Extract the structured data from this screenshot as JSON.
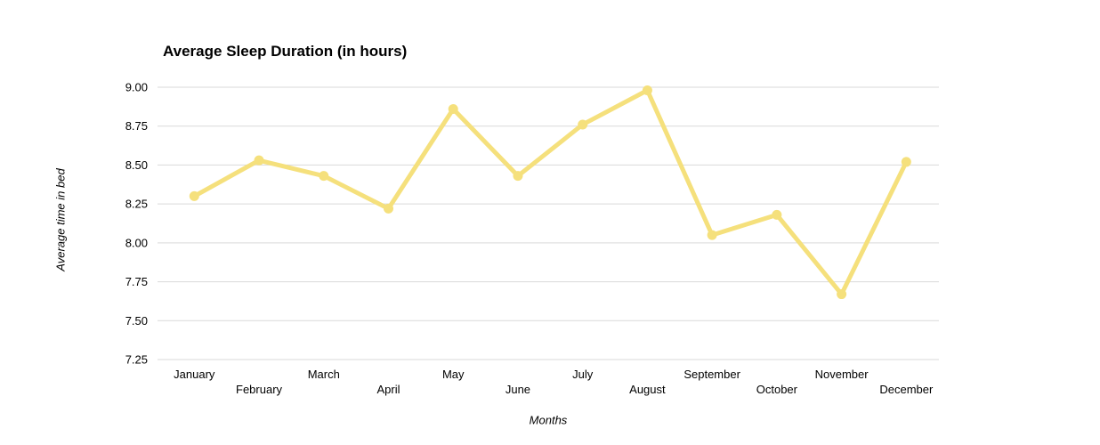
{
  "chart_data": {
    "type": "line",
    "title": "Average Sleep Duration (in hours)",
    "xlabel": "Months",
    "ylabel": "Average time in bed",
    "categories": [
      "January",
      "February",
      "March",
      "April",
      "May",
      "June",
      "July",
      "August",
      "September",
      "October",
      "November",
      "December"
    ],
    "values": [
      8.3,
      8.53,
      8.43,
      8.22,
      8.86,
      8.43,
      8.76,
      8.98,
      8.05,
      8.18,
      7.67,
      8.52
    ],
    "ylim": [
      7.25,
      9.0
    ],
    "ytick_step": 0.25,
    "ytick_labels": [
      "7.25",
      "7.50",
      "7.75",
      "8.00",
      "8.25",
      "8.50",
      "8.75",
      "9.00"
    ],
    "grid": true,
    "legend_position": "none",
    "x_labels_staggered": true,
    "line_color": "#F5E07C",
    "gridline_color": "#D9D9D9",
    "text_color": "#000000",
    "marker": "circle"
  }
}
